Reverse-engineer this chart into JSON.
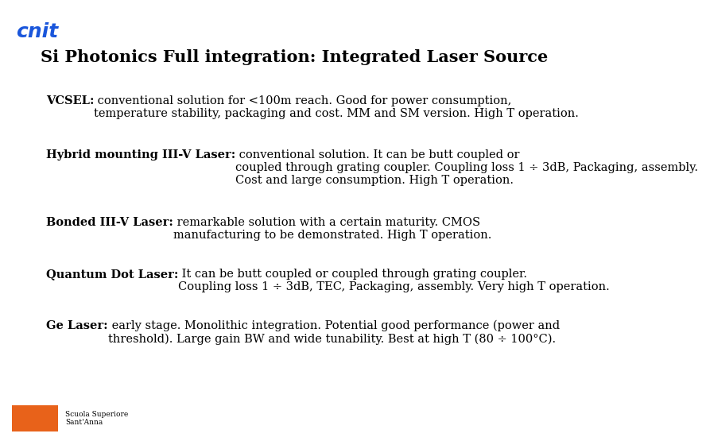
{
  "title": "Si Photonics Full integration: Integrated Laser Source",
  "background_color": "#ffffff",
  "title_color": "#000000",
  "title_fontsize": 15,
  "cnit_text": "cnit",
  "cnit_color": "#1a56db",
  "cnit_fontsize": 18,
  "paragraphs": [
    {
      "bold_part": "VCSEL:",
      "normal_part": " conventional solution for <100m reach. Good for power consumption,\ntemperature stability, packaging and cost. MM and SM version. High T operation.",
      "fontsize": 10.5
    },
    {
      "bold_part": "Hybrid mounting III-V Laser:",
      "normal_part": " conventional solution. It can be butt coupled or\ncoupled through grating coupler. Coupling loss 1 ÷ 3dB, Packaging, assembly.\nCost and large consumption. High T operation.",
      "fontsize": 10.5
    },
    {
      "bold_part": "Bonded III-V Laser:",
      "normal_part": " remarkable solution with a certain maturity. CMOS\nmanufacturing to be demonstrated. High T operation.",
      "fontsize": 10.5
    },
    {
      "bold_part": "Quantum Dot Laser:",
      "normal_part": " It can be butt coupled or coupled through grating coupler.\nCoupling loss 1 ÷ 3dB, TEC, Packaging, assembly. Very high T operation.",
      "fontsize": 10.5
    },
    {
      "bold_part": "Ge Laser:",
      "normal_part": " early stage. Monolithic integration. Potential good performance (power and\nthreshold). Large gain BW and wide tunability. Best at high T (80 ÷ 100°C).",
      "fontsize": 10.5
    }
  ],
  "footer_box_color": "#e8621a",
  "footer_logo_text": "Scuola Superiore\nSant'Anna"
}
